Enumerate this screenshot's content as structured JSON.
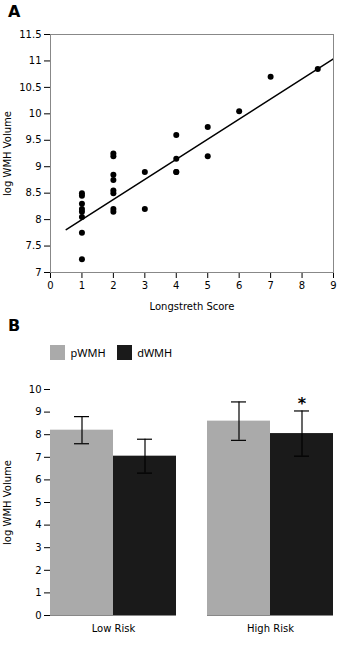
{
  "chart_data": [
    {
      "type": "scatter",
      "title": "A",
      "xlabel": "Longstreth Score",
      "ylabel": "log WMH Volume",
      "series": [
        {
          "type": "scatter",
          "color": "black",
          "x": [
            1,
            1,
            1,
            1,
            1,
            1,
            1,
            1,
            2,
            2,
            2,
            2,
            2,
            2,
            2,
            2,
            3,
            3,
            4,
            4,
            4,
            4,
            5,
            5,
            6,
            7,
            8.5
          ],
          "values": [
            8.2,
            8.3,
            8.45,
            8.5,
            8.15,
            7.75,
            7.25,
            8.05,
            8.5,
            8.55,
            8.15,
            8.75,
            8.85,
            9.2,
            9.25,
            8.2,
            8.9,
            8.2,
            9.6,
            9.15,
            8.9,
            8.9,
            9.75,
            9.2,
            10.05,
            10.7,
            10.85
          ]
        },
        {
          "type": "line",
          "color": "black",
          "x": [
            0.5,
            9.0
          ],
          "values": [
            7.81,
            11.04
          ]
        }
      ],
      "xlim": [
        0,
        9
      ],
      "xticks": [
        0,
        1,
        2,
        3,
        4,
        5,
        6,
        7,
        8,
        9
      ],
      "ylim": [
        7,
        11.5
      ],
      "yticks": [
        7,
        7.5,
        8,
        8.5,
        9,
        9.5,
        10,
        10.5,
        11,
        11.5
      ]
    },
    {
      "type": "bar",
      "title": "B",
      "ylabel": "log WMH Volume",
      "categories": [
        "Low Risk",
        "High Risk"
      ],
      "series": [
        {
          "name": "pWMH",
          "color": "#aaaaaa",
          "values": [
            8.2,
            8.6
          ],
          "errors": [
            0.6,
            0.85
          ]
        },
        {
          "name": "dWMH",
          "color": "#1a1a1a",
          "values": [
            7.05,
            8.05
          ],
          "errors": [
            0.75,
            1.0
          ]
        }
      ],
      "ylim": [
        0,
        10
      ],
      "yticks": [
        0,
        1,
        2,
        3,
        4,
        5,
        6,
        7,
        8,
        9,
        10
      ],
      "legend": "top-left",
      "annotations": [
        {
          "text": "*",
          "category": "High Risk",
          "series": "dWMH"
        }
      ]
    }
  ]
}
